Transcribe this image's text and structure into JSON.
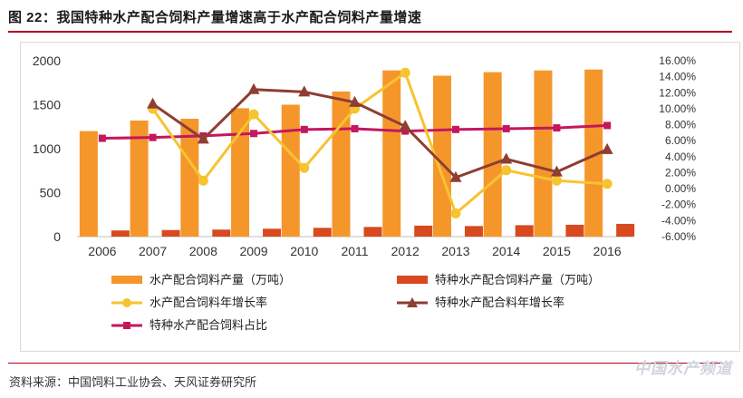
{
  "figure": {
    "title": "图 22：我国特种水产配合饲料产量增速高于水产配合饲料产量增速",
    "source": "资料来源：中国饲料工业协会、天风证券研究所",
    "watermark": "中国水产频道"
  },
  "colors": {
    "bar_total": "#f5962b",
    "bar_special": "#d8491f",
    "line_total_growth": "#f6c331",
    "line_special_growth": "#8e3e32",
    "line_share": "#c4175e",
    "rule": "#b3001b"
  },
  "chart_data": {
    "type": "bar",
    "categories": [
      "2006",
      "2007",
      "2008",
      "2009",
      "2010",
      "2011",
      "2012",
      "2013",
      "2014",
      "2015",
      "2016"
    ],
    "y_left": {
      "ylim": [
        0,
        2000
      ],
      "ticks": [
        "0",
        "500",
        "1000",
        "1500",
        "2000"
      ]
    },
    "y_right": {
      "ylim": [
        -6,
        16
      ],
      "ticks": [
        "-6.00%",
        "-4.00%",
        "-2.00%",
        "0.00%",
        "2.00%",
        "4.00%",
        "6.00%",
        "8.00%",
        "10.00%",
        "12.00%",
        "14.00%",
        "16.00%"
      ]
    },
    "series": [
      {
        "name": "水产配合饲料产量（万吨）",
        "kind": "bar",
        "axis": "left",
        "values": [
          1200,
          1320,
          1340,
          1460,
          1500,
          1650,
          1890,
          1830,
          1870,
          1890,
          1900
        ]
      },
      {
        "name": "特种水产配合饲料产量（万吨）",
        "kind": "bar",
        "axis": "left",
        "values": [
          70,
          75,
          80,
          90,
          100,
          110,
          125,
          120,
          130,
          135,
          145
        ]
      },
      {
        "name": "水产配合饲料年增长率",
        "kind": "line",
        "axis": "right",
        "marker": "circle",
        "values": [
          null,
          10.0,
          1.0,
          9.3,
          2.6,
          10.0,
          14.5,
          -3.1,
          2.3,
          1.0,
          0.6
        ]
      },
      {
        "name": "特种水产配合料年增长率",
        "kind": "line",
        "axis": "right",
        "marker": "triangle",
        "values": [
          null,
          10.6,
          6.2,
          12.4,
          12.1,
          10.8,
          7.8,
          1.4,
          3.7,
          2.1,
          4.9
        ]
      },
      {
        "name": "特种水产配合饲料占比",
        "kind": "line",
        "axis": "right",
        "marker": "square",
        "values": [
          6.3,
          6.4,
          6.6,
          6.9,
          7.4,
          7.5,
          7.2,
          7.4,
          7.5,
          7.6,
          7.9
        ]
      }
    ]
  }
}
